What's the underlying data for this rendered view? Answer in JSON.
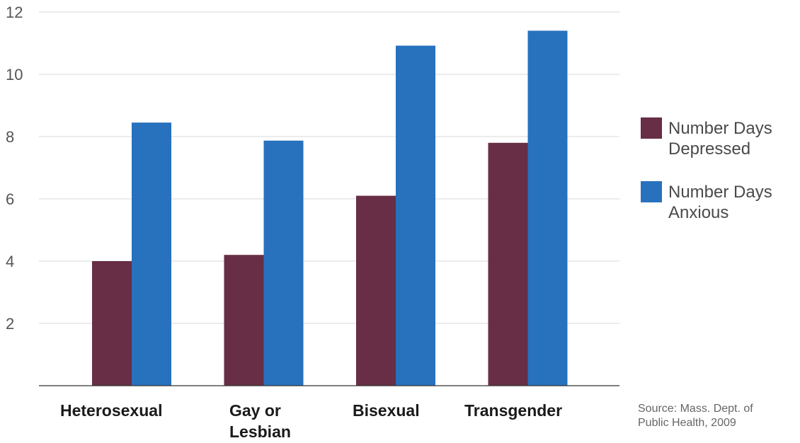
{
  "chart_data": {
    "type": "bar",
    "categories": [
      [
        "Heterosexual"
      ],
      [
        "Gay or",
        "Lesbian"
      ],
      [
        "Bisexual"
      ],
      [
        "Transgender"
      ]
    ],
    "series": [
      {
        "name": [
          "Number Days",
          "Depressed"
        ],
        "color": "#672e45",
        "values": [
          4.0,
          4.2,
          6.1,
          7.8
        ]
      },
      {
        "name": [
          "Number Days",
          "Anxious"
        ],
        "color": "#2771bd",
        "values": [
          8.45,
          7.87,
          10.92,
          11.4
        ]
      }
    ],
    "ylim": [
      0,
      12
    ],
    "yticks": [
      2,
      4,
      6,
      8,
      10,
      12
    ],
    "grid": true,
    "legend_position": "right",
    "source": [
      "Source: Mass. Dept. of",
      "Public Health, 2009"
    ]
  }
}
